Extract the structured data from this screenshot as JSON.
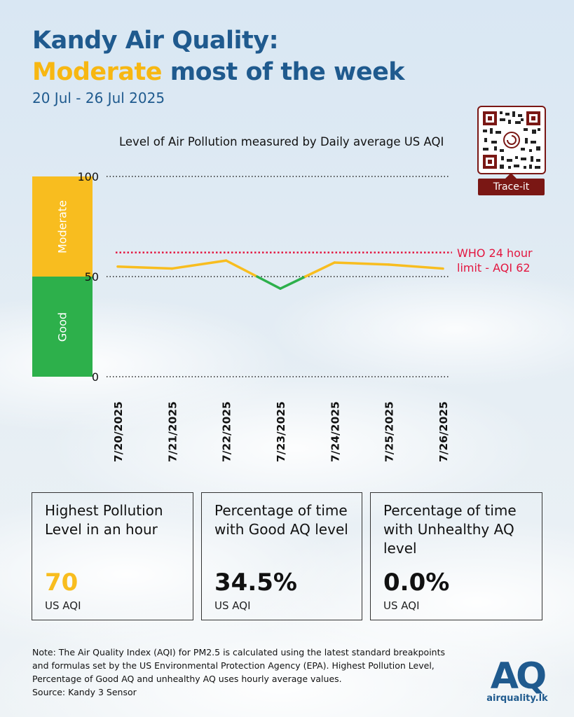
{
  "header": {
    "title_line1": "Kandy Air Quality:",
    "title_highlight": "Moderate",
    "title_line2_rest": " most of the week",
    "date_range": "20 Jul - 26 Jul 2025"
  },
  "qr": {
    "label": "Trace-it"
  },
  "bands": {
    "moderate": "Moderate",
    "good": "Good"
  },
  "who_limit": {
    "line1": "WHO 24 hour",
    "line2": "limit - AQI 62",
    "value": 62
  },
  "colors": {
    "moderate": "#f8bd1f",
    "good": "#2db04b",
    "who": "#e3163f",
    "title": "#1f5a8e"
  },
  "chart_data": {
    "type": "line",
    "title": "Level of Air Pollution measured by Daily average US AQI",
    "categories": [
      "7/20/2025",
      "7/21/2025",
      "7/22/2025",
      "7/23/2025",
      "7/24/2025",
      "7/25/2025",
      "7/26/2025"
    ],
    "values": [
      55,
      54,
      58,
      44,
      57,
      56,
      54
    ],
    "yticks": [
      0,
      50,
      100
    ],
    "ylim": [
      0,
      100
    ],
    "reference_line": 62,
    "colored_by_band": {
      "good_below": 50
    }
  },
  "cards": [
    {
      "title": "Highest Pollution Level in an hour",
      "value": "70",
      "unit": "US AQI",
      "value_color": "#f8bd1f"
    },
    {
      "title": "Percentage of time with Good AQ level",
      "value": "34.5%",
      "unit": "US AQI",
      "value_color": "#111111"
    },
    {
      "title": "Percentage of time with Unhealthy AQ level",
      "value": "0.0%",
      "unit": "US AQI",
      "value_color": "#111111"
    }
  ],
  "note": {
    "text": "Note: The Air Quality Index (AQI) for PM2.5 is calculated using the latest standard breakpoints and formulas set by the US Environmental Protection Agency (EPA). Highest Pollution Level, Percentage of Good AQ and unhealthy AQ uses hourly average values.",
    "source": "Source: Kandy 3 Sensor"
  },
  "logo": {
    "mark": "AQ",
    "site": "airquality.lk"
  }
}
